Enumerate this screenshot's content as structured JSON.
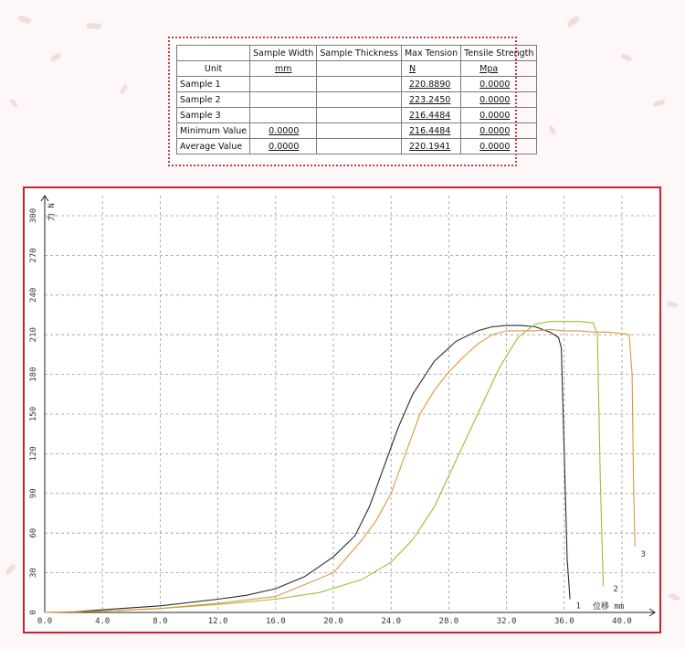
{
  "table": {
    "headers": [
      "",
      "Sample Width",
      "Sample Thickness",
      "Max Tension",
      "Tensile Strength"
    ],
    "units": [
      "Unit",
      "mm",
      "",
      "N",
      "Mpa"
    ],
    "rows": [
      {
        "label": "Sample 1",
        "width": "",
        "thickness": "",
        "tension": "220.8890",
        "strength": "0.0000"
      },
      {
        "label": "Sample 2",
        "width": "",
        "thickness": "",
        "tension": "223.2450",
        "strength": "0.0000"
      },
      {
        "label": "Sample 3",
        "width": "",
        "thickness": "",
        "tension": "216.4484",
        "strength": "0.0000"
      },
      {
        "label": "Minimum Value",
        "width": "0.0000",
        "thickness": "",
        "tension": "216.4484",
        "strength": "0.0000"
      },
      {
        "label": "Average Value",
        "width": "0.0000",
        "thickness": "",
        "tension": "220.1941",
        "strength": "0.0000"
      }
    ]
  },
  "colors": {
    "frame": "#c9242b",
    "table_border": "#d03a3a",
    "grid": "#9a9a9a"
  },
  "chart_data": {
    "type": "line",
    "xlabel": "位移 mm",
    "ylabel": "力 N",
    "xlim": [
      0,
      43
    ],
    "ylim": [
      0,
      310
    ],
    "xticks": [
      "0.0",
      "4.0",
      "8.0",
      "12.0",
      "16.0",
      "20.0",
      "24.0",
      "28.0",
      "32.0",
      "36.0",
      "40.0"
    ],
    "yticks": [
      "0",
      "30",
      "60",
      "90",
      "120",
      "150",
      "180",
      "210",
      "240",
      "270",
      "300"
    ],
    "grid": true,
    "series": [
      {
        "name": "1",
        "color": "#2b2b2b",
        "label_at": [
          36.8,
          3
        ],
        "points": [
          [
            0,
            0
          ],
          [
            2,
            0.5
          ],
          [
            4,
            2
          ],
          [
            8,
            5
          ],
          [
            12,
            10
          ],
          [
            14,
            13
          ],
          [
            16,
            18
          ],
          [
            18,
            27
          ],
          [
            20,
            42
          ],
          [
            21.5,
            58
          ],
          [
            22.5,
            80
          ],
          [
            23.5,
            110
          ],
          [
            24.5,
            140
          ],
          [
            25.5,
            165
          ],
          [
            27,
            190
          ],
          [
            28.5,
            205
          ],
          [
            30,
            213
          ],
          [
            31,
            216
          ],
          [
            32,
            217
          ],
          [
            33,
            217
          ],
          [
            34,
            216
          ],
          [
            35,
            212
          ],
          [
            35.6,
            208
          ],
          [
            35.8,
            200
          ],
          [
            36,
            120
          ],
          [
            36.2,
            40
          ],
          [
            36.4,
            10
          ]
        ]
      },
      {
        "name": "2",
        "color": "#9bbf2a",
        "label_at": [
          39.4,
          16
        ],
        "points": [
          [
            0,
            0
          ],
          [
            4,
            1
          ],
          [
            8,
            3
          ],
          [
            12,
            6
          ],
          [
            16,
            10
          ],
          [
            19,
            15
          ],
          [
            22,
            25
          ],
          [
            24,
            38
          ],
          [
            25.5,
            55
          ],
          [
            27,
            80
          ],
          [
            28.5,
            115
          ],
          [
            30,
            150
          ],
          [
            31.5,
            185
          ],
          [
            32.8,
            208
          ],
          [
            34,
            218
          ],
          [
            35,
            220
          ],
          [
            36,
            220
          ],
          [
            37,
            220
          ],
          [
            38,
            219
          ],
          [
            38.3,
            210
          ],
          [
            38.5,
            100
          ],
          [
            38.7,
            20
          ]
        ]
      },
      {
        "name": "3",
        "color": "#e2953f",
        "label_at": [
          41.3,
          42
        ],
        "points": [
          [
            0,
            0
          ],
          [
            4,
            1
          ],
          [
            8,
            3
          ],
          [
            12,
            7
          ],
          [
            16,
            12
          ],
          [
            20,
            30
          ],
          [
            22,
            55
          ],
          [
            23,
            70
          ],
          [
            24,
            90
          ],
          [
            25,
            120
          ],
          [
            26,
            150
          ],
          [
            27,
            168
          ],
          [
            28,
            182
          ],
          [
            29,
            193
          ],
          [
            30,
            203
          ],
          [
            31,
            210
          ],
          [
            32,
            213
          ],
          [
            33,
            213
          ],
          [
            34,
            213
          ],
          [
            35,
            214
          ],
          [
            36,
            213
          ],
          [
            37,
            213
          ],
          [
            38,
            212
          ],
          [
            39,
            212
          ],
          [
            40,
            211
          ],
          [
            40.5,
            210
          ],
          [
            40.7,
            180
          ],
          [
            40.8,
            100
          ],
          [
            40.9,
            50
          ]
        ]
      }
    ]
  }
}
